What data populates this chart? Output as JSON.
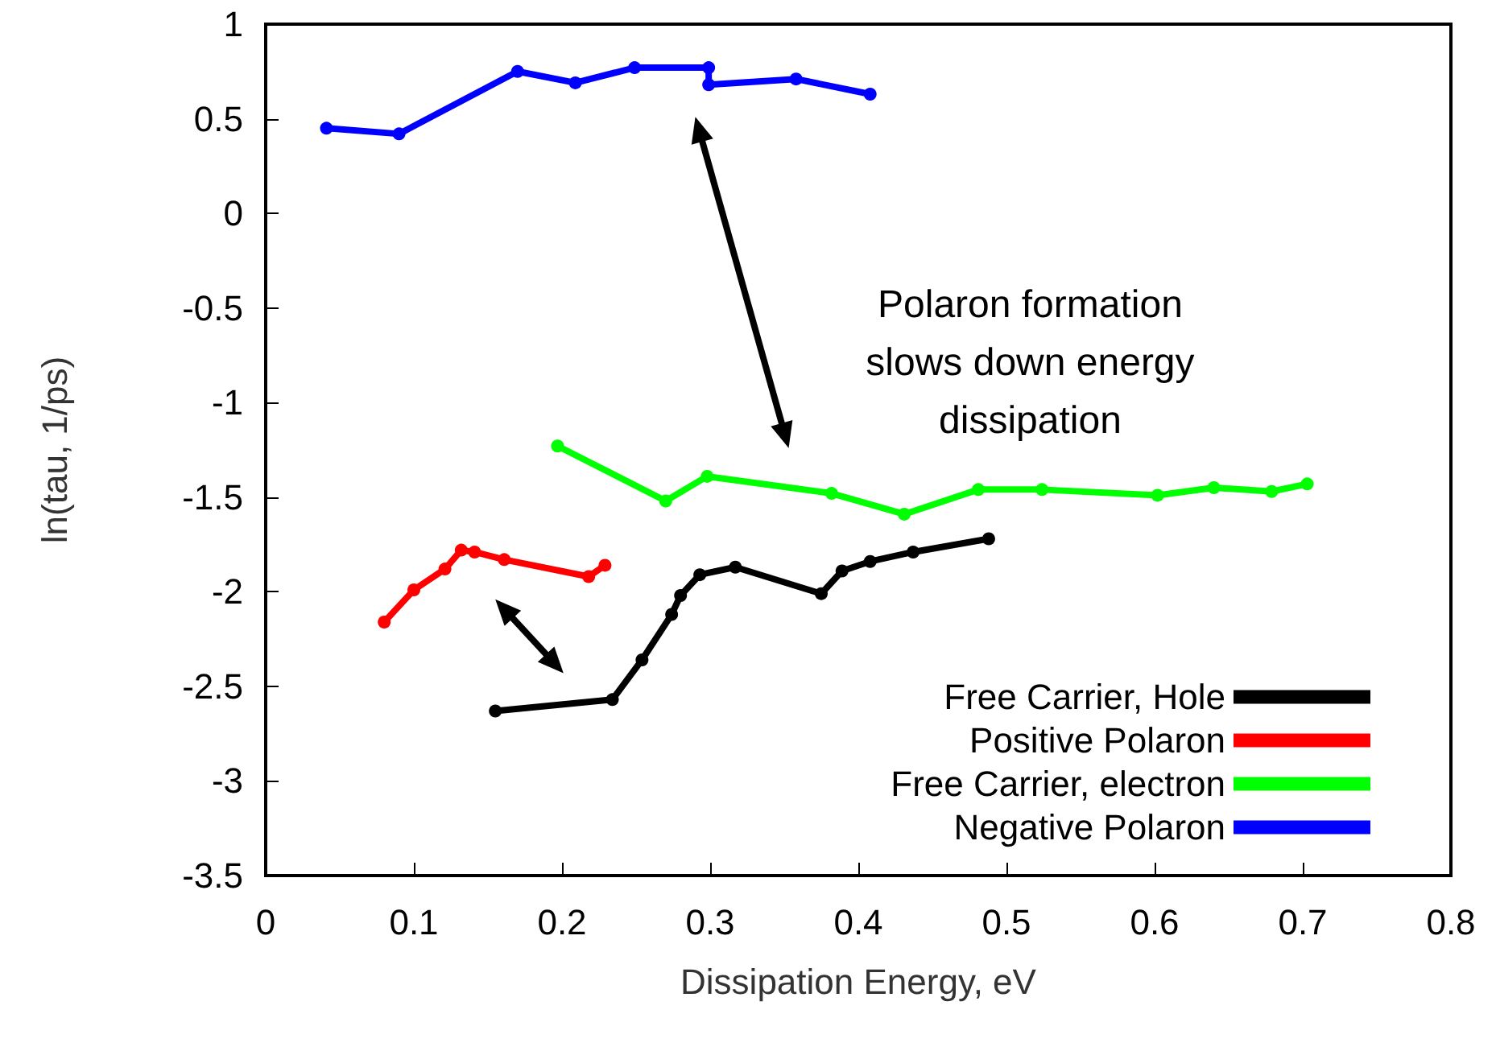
{
  "chart_data": {
    "type": "line",
    "xlabel": "Dissipation Energy, eV",
    "ylabel": "ln(tau, 1/ps)",
    "xlim": [
      0,
      0.8
    ],
    "xticks": [
      0,
      0.1,
      0.2,
      0.3,
      0.4,
      0.5,
      0.6,
      0.7,
      0.8
    ],
    "ylim": [
      -3.5,
      1
    ],
    "yticks": [
      -3.5,
      -3,
      -2.5,
      -2,
      -1.5,
      -1,
      -0.5,
      0,
      0.5,
      1
    ],
    "grid": false,
    "legend": "bottom right",
    "marker": "circle",
    "line_style": "solid",
    "annotations": [
      "Polaron formation\nslows down energy\ndissipation"
    ],
    "series": [
      {
        "name": "Free Carrier, Hole",
        "color": "#000000",
        "x": [
          0.155,
          0.234,
          0.254,
          0.274,
          0.28,
          0.293,
          0.317,
          0.375,
          0.389,
          0.408,
          0.437,
          0.488
        ],
        "values": [
          -2.63,
          -2.57,
          -2.36,
          -2.12,
          -2.02,
          -1.91,
          -1.87,
          -2.01,
          -1.89,
          -1.84,
          -1.79,
          -1.72
        ]
      },
      {
        "name": "Positive Polaron",
        "color": "#ff0000",
        "x": [
          0.08,
          0.1,
          0.121,
          0.132,
          0.141,
          0.161,
          0.218,
          0.229
        ],
        "values": [
          -2.16,
          -1.99,
          -1.88,
          -1.78,
          -1.79,
          -1.83,
          -1.92,
          -1.86
        ]
      },
      {
        "name": "Free Carrier, electron",
        "color": "#00ff00",
        "x": [
          0.197,
          0.27,
          0.298,
          0.382,
          0.431,
          0.481,
          0.524,
          0.602,
          0.64,
          0.679,
          0.703
        ],
        "values": [
          -1.23,
          -1.52,
          -1.39,
          -1.48,
          -1.59,
          -1.46,
          -1.46,
          -1.49,
          -1.45,
          -1.47,
          -1.43
        ]
      },
      {
        "name": "Negative Polaron",
        "color": "#0000ff",
        "x": [
          0.041,
          0.09,
          0.17,
          0.209,
          0.249,
          0.299,
          0.299,
          0.358,
          0.408
        ],
        "values": [
          0.45,
          0.42,
          0.75,
          0.69,
          0.77,
          0.77,
          0.68,
          0.71,
          0.63
        ]
      }
    ]
  }
}
